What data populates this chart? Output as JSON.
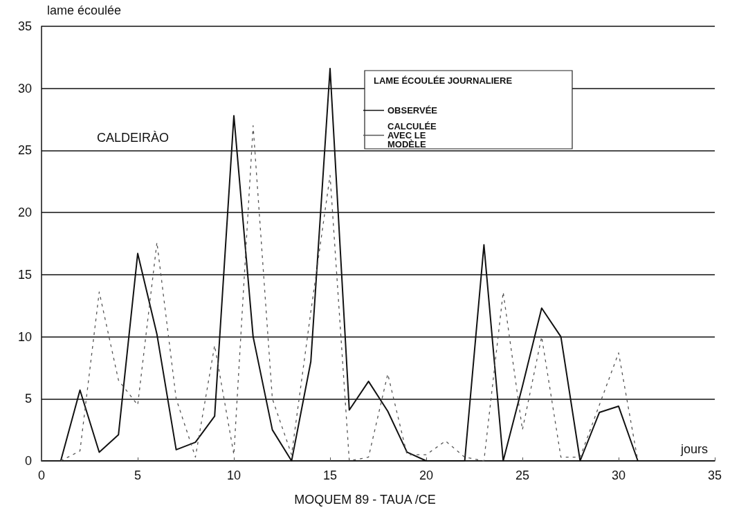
{
  "chart_data": {
    "type": "line",
    "title": "MOQUEM 89 - TAUA /CE",
    "xlabel": "jours",
    "ylabel": "lame écoulée",
    "legend_title": "LAME ÉCOULÉE JOURNALIERE",
    "annotations": [
      "CALDEIRÀO"
    ],
    "x": [
      1,
      2,
      3,
      4,
      5,
      6,
      7,
      8,
      9,
      10,
      11,
      12,
      13,
      14,
      15,
      16,
      17,
      18,
      19,
      20,
      21,
      22,
      23,
      24,
      25,
      26,
      27,
      28,
      29,
      30,
      31
    ],
    "series": [
      {
        "name": "OBSERVÉE",
        "color": "#111111",
        "line_style": "solid",
        "values": [
          0,
          5.7,
          0.7,
          2.1,
          16.7,
          10.2,
          0.9,
          1.5,
          3.6,
          27.8,
          10,
          2.5,
          0,
          8,
          31.6,
          4.1,
          6.4,
          4,
          0.7,
          0,
          0,
          0,
          17.4,
          0,
          6,
          12.3,
          10,
          0,
          3.9,
          4.4,
          0
        ]
      },
      {
        "name": "CALCULÉE AVEC LE MODÈLE",
        "color": "#555555",
        "line_style": "dashed",
        "values": [
          0,
          0.8,
          13.6,
          6.5,
          4.5,
          17.6,
          5,
          0.3,
          9.3,
          0.5,
          27,
          5,
          0.5,
          12,
          23,
          0,
          0.3,
          7,
          0.5,
          0.5,
          1.6,
          0.3,
          0,
          13.6,
          2.5,
          10,
          0.3,
          0.3,
          4.5,
          8.7,
          0
        ]
      }
    ],
    "xlim": [
      0,
      35
    ],
    "xticks": [
      0,
      5,
      10,
      15,
      20,
      25,
      30,
      35
    ],
    "ylim": [
      0,
      35
    ],
    "yticks": [
      0,
      5,
      10,
      15,
      20,
      25,
      30,
      35
    ],
    "grid": "y",
    "legend": "top right",
    "marker": "none"
  }
}
